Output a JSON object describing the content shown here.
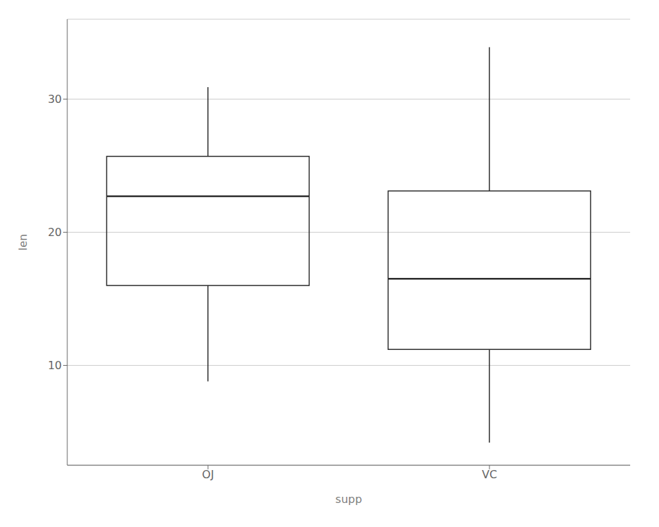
{
  "chart_data": {
    "type": "box",
    "categories": [
      "OJ",
      "VC"
    ],
    "whisker_low": [
      8.8,
      4.2
    ],
    "q1": [
      16.0,
      11.2
    ],
    "median": [
      22.7,
      16.5
    ],
    "q3": [
      25.7,
      23.1
    ],
    "whisker_high": [
      30.9,
      33.9
    ],
    "xlabel": "supp",
    "ylabel": "len",
    "ylim": [
      2.5,
      36
    ],
    "yticks": [
      10,
      20,
      30
    ],
    "grid": true,
    "color": "#2B2B2B"
  }
}
